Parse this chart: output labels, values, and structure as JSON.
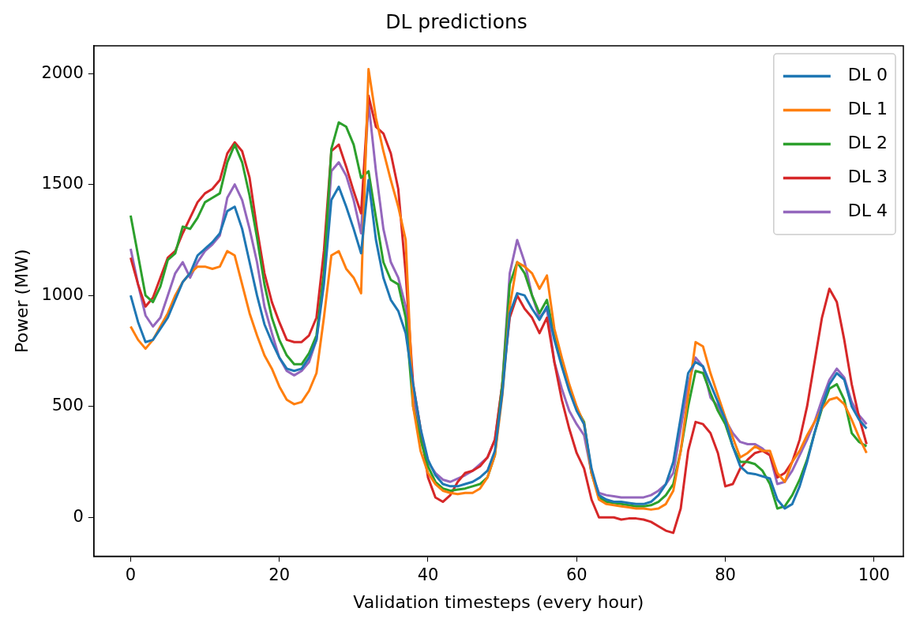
{
  "chart_data": {
    "type": "line",
    "title": "DL predictions",
    "xlabel": "Validation timesteps (every hour)",
    "ylabel": "Power (MW)",
    "x": [
      0,
      1,
      2,
      3,
      4,
      5,
      6,
      7,
      8,
      9,
      10,
      11,
      12,
      13,
      14,
      15,
      16,
      17,
      18,
      19,
      20,
      21,
      22,
      23,
      24,
      25,
      26,
      27,
      28,
      29,
      30,
      31,
      32,
      33,
      34,
      35,
      36,
      37,
      38,
      39,
      40,
      41,
      42,
      43,
      44,
      45,
      46,
      47,
      48,
      49,
      50,
      51,
      52,
      53,
      54,
      55,
      56,
      57,
      58,
      59,
      60,
      61,
      62,
      63,
      64,
      65,
      66,
      67,
      68,
      69,
      70,
      71,
      72,
      73,
      74,
      75,
      76,
      77,
      78,
      79,
      80,
      81,
      82,
      83,
      84,
      85,
      86,
      87,
      88,
      89,
      90,
      91,
      92,
      93,
      94,
      95,
      96,
      97,
      98,
      99
    ],
    "xlim": [
      -4.95,
      103.95
    ],
    "xticks": [
      0,
      20,
      40,
      60,
      80,
      100
    ],
    "ylim": [
      -175,
      2125
    ],
    "yticks": [
      0,
      500,
      1000,
      1500,
      2000
    ],
    "grid": false,
    "legend": "top right",
    "marker": "none",
    "line_style": "solid",
    "series": [
      {
        "name": "DL 0",
        "color": "#1f77b4",
        "values": [
          1000,
          880,
          790,
          800,
          850,
          900,
          980,
          1060,
          1100,
          1180,
          1210,
          1240,
          1280,
          1380,
          1400,
          1300,
          1150,
          1000,
          870,
          790,
          720,
          670,
          660,
          670,
          720,
          800,
          1050,
          1430,
          1490,
          1400,
          1300,
          1190,
          1520,
          1250,
          1080,
          980,
          930,
          830,
          600,
          400,
          260,
          190,
          150,
          140,
          140,
          150,
          160,
          180,
          210,
          300,
          560,
          920,
          1010,
          1000,
          940,
          890,
          950,
          800,
          680,
          570,
          480,
          420,
          220,
          100,
          80,
          70,
          70,
          65,
          60,
          60,
          70,
          100,
          150,
          250,
          450,
          650,
          700,
          680,
          600,
          520,
          440,
          320,
          230,
          200,
          195,
          185,
          175,
          80,
          40,
          60,
          140,
          250,
          380,
          500,
          600,
          650,
          620,
          500,
          440,
          400
        ]
      },
      {
        "name": "DL 1",
        "color": "#ff7f0e",
        "values": [
          860,
          800,
          760,
          800,
          860,
          920,
          1000,
          1060,
          1100,
          1130,
          1130,
          1120,
          1130,
          1200,
          1180,
          1050,
          920,
          820,
          730,
          670,
          590,
          530,
          510,
          520,
          570,
          650,
          900,
          1180,
          1200,
          1120,
          1080,
          1010,
          2020,
          1800,
          1650,
          1520,
          1400,
          1250,
          500,
          300,
          200,
          150,
          120,
          110,
          105,
          110,
          110,
          130,
          180,
          280,
          550,
          950,
          1150,
          1130,
          1100,
          1030,
          1090,
          850,
          720,
          600,
          500,
          420,
          200,
          80,
          60,
          55,
          50,
          45,
          40,
          40,
          35,
          40,
          60,
          120,
          300,
          550,
          790,
          770,
          650,
          550,
          450,
          360,
          270,
          290,
          320,
          300,
          300,
          200,
          160,
          250,
          300,
          370,
          430,
          490,
          530,
          540,
          510,
          440,
          360,
          290
        ]
      },
      {
        "name": "DL 2",
        "color": "#2ca02c",
        "values": [
          1360,
          1180,
          1000,
          970,
          1040,
          1160,
          1190,
          1310,
          1300,
          1350,
          1420,
          1440,
          1460,
          1600,
          1680,
          1600,
          1450,
          1260,
          1050,
          900,
          800,
          730,
          690,
          690,
          740,
          820,
          1100,
          1660,
          1780,
          1760,
          1680,
          1530,
          1560,
          1350,
          1150,
          1070,
          1050,
          900,
          500,
          350,
          230,
          160,
          130,
          120,
          125,
          130,
          140,
          150,
          180,
          280,
          600,
          1050,
          1150,
          1100,
          1000,
          920,
          980,
          820,
          700,
          590,
          490,
          430,
          200,
          90,
          70,
          65,
          60,
          55,
          50,
          50,
          55,
          70,
          100,
          150,
          300,
          500,
          660,
          650,
          560,
          480,
          420,
          320,
          250,
          250,
          240,
          210,
          150,
          40,
          50,
          100,
          170,
          260,
          380,
          490,
          580,
          600,
          530,
          380,
          340,
          320
        ]
      },
      {
        "name": "DL 3",
        "color": "#d62728",
        "values": [
          1170,
          1050,
          950,
          990,
          1080,
          1170,
          1200,
          1280,
          1350,
          1420,
          1460,
          1480,
          1520,
          1640,
          1690,
          1650,
          1530,
          1300,
          1100,
          970,
          880,
          800,
          790,
          790,
          820,
          900,
          1200,
          1650,
          1680,
          1580,
          1470,
          1370,
          1900,
          1760,
          1730,
          1640,
          1480,
          1100,
          600,
          400,
          180,
          90,
          70,
          100,
          160,
          200,
          210,
          230,
          270,
          350,
          600,
          900,
          1000,
          940,
          900,
          830,
          900,
          700,
          530,
          400,
          290,
          220,
          80,
          0,
          0,
          0,
          -10,
          -5,
          -5,
          -10,
          -20,
          -40,
          -60,
          -70,
          40,
          300,
          430,
          420,
          380,
          290,
          140,
          150,
          220,
          260,
          290,
          300,
          280,
          180,
          200,
          250,
          350,
          500,
          700,
          900,
          1030,
          970,
          800,
          600,
          450,
          330
        ]
      },
      {
        "name": "DL 4",
        "color": "#9467bd",
        "values": [
          1210,
          1050,
          910,
          860,
          900,
          1000,
          1100,
          1150,
          1080,
          1150,
          1200,
          1230,
          1270,
          1440,
          1500,
          1430,
          1300,
          1150,
          950,
          830,
          720,
          660,
          640,
          660,
          700,
          800,
          1100,
          1560,
          1600,
          1540,
          1430,
          1280,
          1870,
          1560,
          1300,
          1150,
          1080,
          950,
          550,
          360,
          250,
          200,
          170,
          160,
          175,
          190,
          210,
          240,
          270,
          350,
          600,
          1100,
          1250,
          1150,
          1000,
          900,
          940,
          700,
          580,
          480,
          420,
          370,
          200,
          110,
          100,
          95,
          90,
          90,
          90,
          90,
          100,
          120,
          150,
          200,
          400,
          600,
          720,
          680,
          540,
          500,
          440,
          380,
          340,
          330,
          330,
          310,
          280,
          150,
          160,
          210,
          280,
          350,
          430,
          530,
          620,
          670,
          630,
          520,
          460,
          420
        ]
      }
    ]
  }
}
